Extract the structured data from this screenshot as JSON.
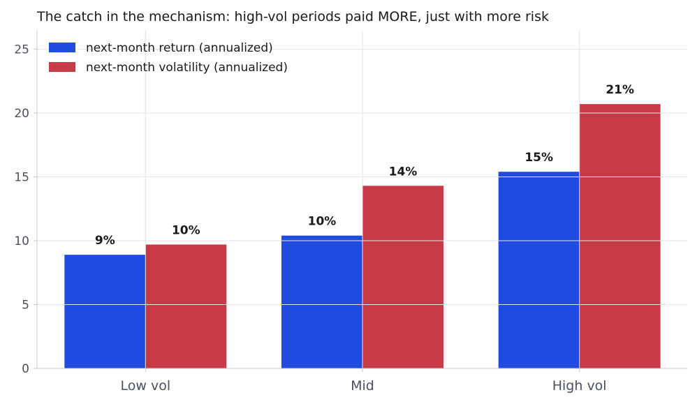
{
  "chart_data": {
    "type": "bar",
    "title": "The catch in the mechanism: high-vol periods paid MORE, just with more risk",
    "xlabel": "",
    "ylabel": "",
    "categories": [
      "Low vol",
      "Mid",
      "High vol"
    ],
    "series": [
      {
        "name": "next-month return (annualized)",
        "values": [
          8.9,
          10.4,
          15.4
        ],
        "labels": [
          "9%",
          "10%",
          "15%"
        ],
        "color": "#1f4be0"
      },
      {
        "name": "next-month volatility (annualized)",
        "values": [
          9.7,
          14.3,
          20.7
        ],
        "labels": [
          "10%",
          "14%",
          "21%"
        ],
        "color": "#c93a47"
      }
    ],
    "ylim": [
      0,
      26.5
    ],
    "yticks": [
      0,
      5,
      10,
      15,
      20,
      25
    ],
    "grid": true,
    "legend": "top-left"
  }
}
